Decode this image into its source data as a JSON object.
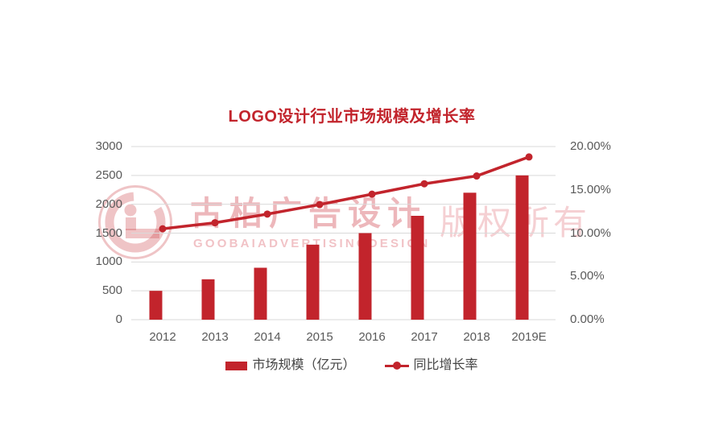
{
  "title": "LOGO设计行业市场规模及增长率",
  "colors": {
    "accent_red": "#C2242C",
    "axis_text": "#595959",
    "grid_line": "#D9D9D9",
    "legend_text": "#444444",
    "watermark_pink": "rgba(210,75,84,0.40)"
  },
  "chart_data": {
    "type": "bar",
    "subtype": "combo-bar-line-dual-axis",
    "title": "LOGO设计行业市场规模及增长率",
    "categories": [
      "2012",
      "2013",
      "2014",
      "2015",
      "2016",
      "2017",
      "2018",
      "2019E"
    ],
    "series": [
      {
        "name": "市场规模（亿元）",
        "type": "bar",
        "axis": "left",
        "values": [
          500,
          700,
          900,
          1300,
          1500,
          1800,
          2200,
          2500
        ]
      },
      {
        "name": "同比增长率",
        "type": "line",
        "axis": "right",
        "unit": "%",
        "values": [
          10.5,
          11.2,
          12.2,
          13.3,
          14.5,
          15.7,
          16.6,
          18.8
        ]
      }
    ],
    "left_axis": {
      "min": 0,
      "max": 3000,
      "step": 500,
      "tick_labels": [
        "0",
        "500",
        "1000",
        "1500",
        "2000",
        "2500",
        "3000"
      ]
    },
    "right_axis": {
      "min": 0,
      "max": 20,
      "step": 5,
      "tick_labels": [
        "0.00%",
        "5.00%",
        "10.00%",
        "15.00%",
        "20.00%"
      ]
    },
    "grid": true,
    "legend_position": "bottom"
  },
  "legend": {
    "bar_label": "市场规模（亿元）",
    "line_label": "同比增长率"
  },
  "watermark": {
    "logo": "goobai-g-logo",
    "brand_cn": "古柏广告设计",
    "brand_en": "GOOBAIADVERTISINGDESIGN",
    "rights": "版权所有"
  }
}
